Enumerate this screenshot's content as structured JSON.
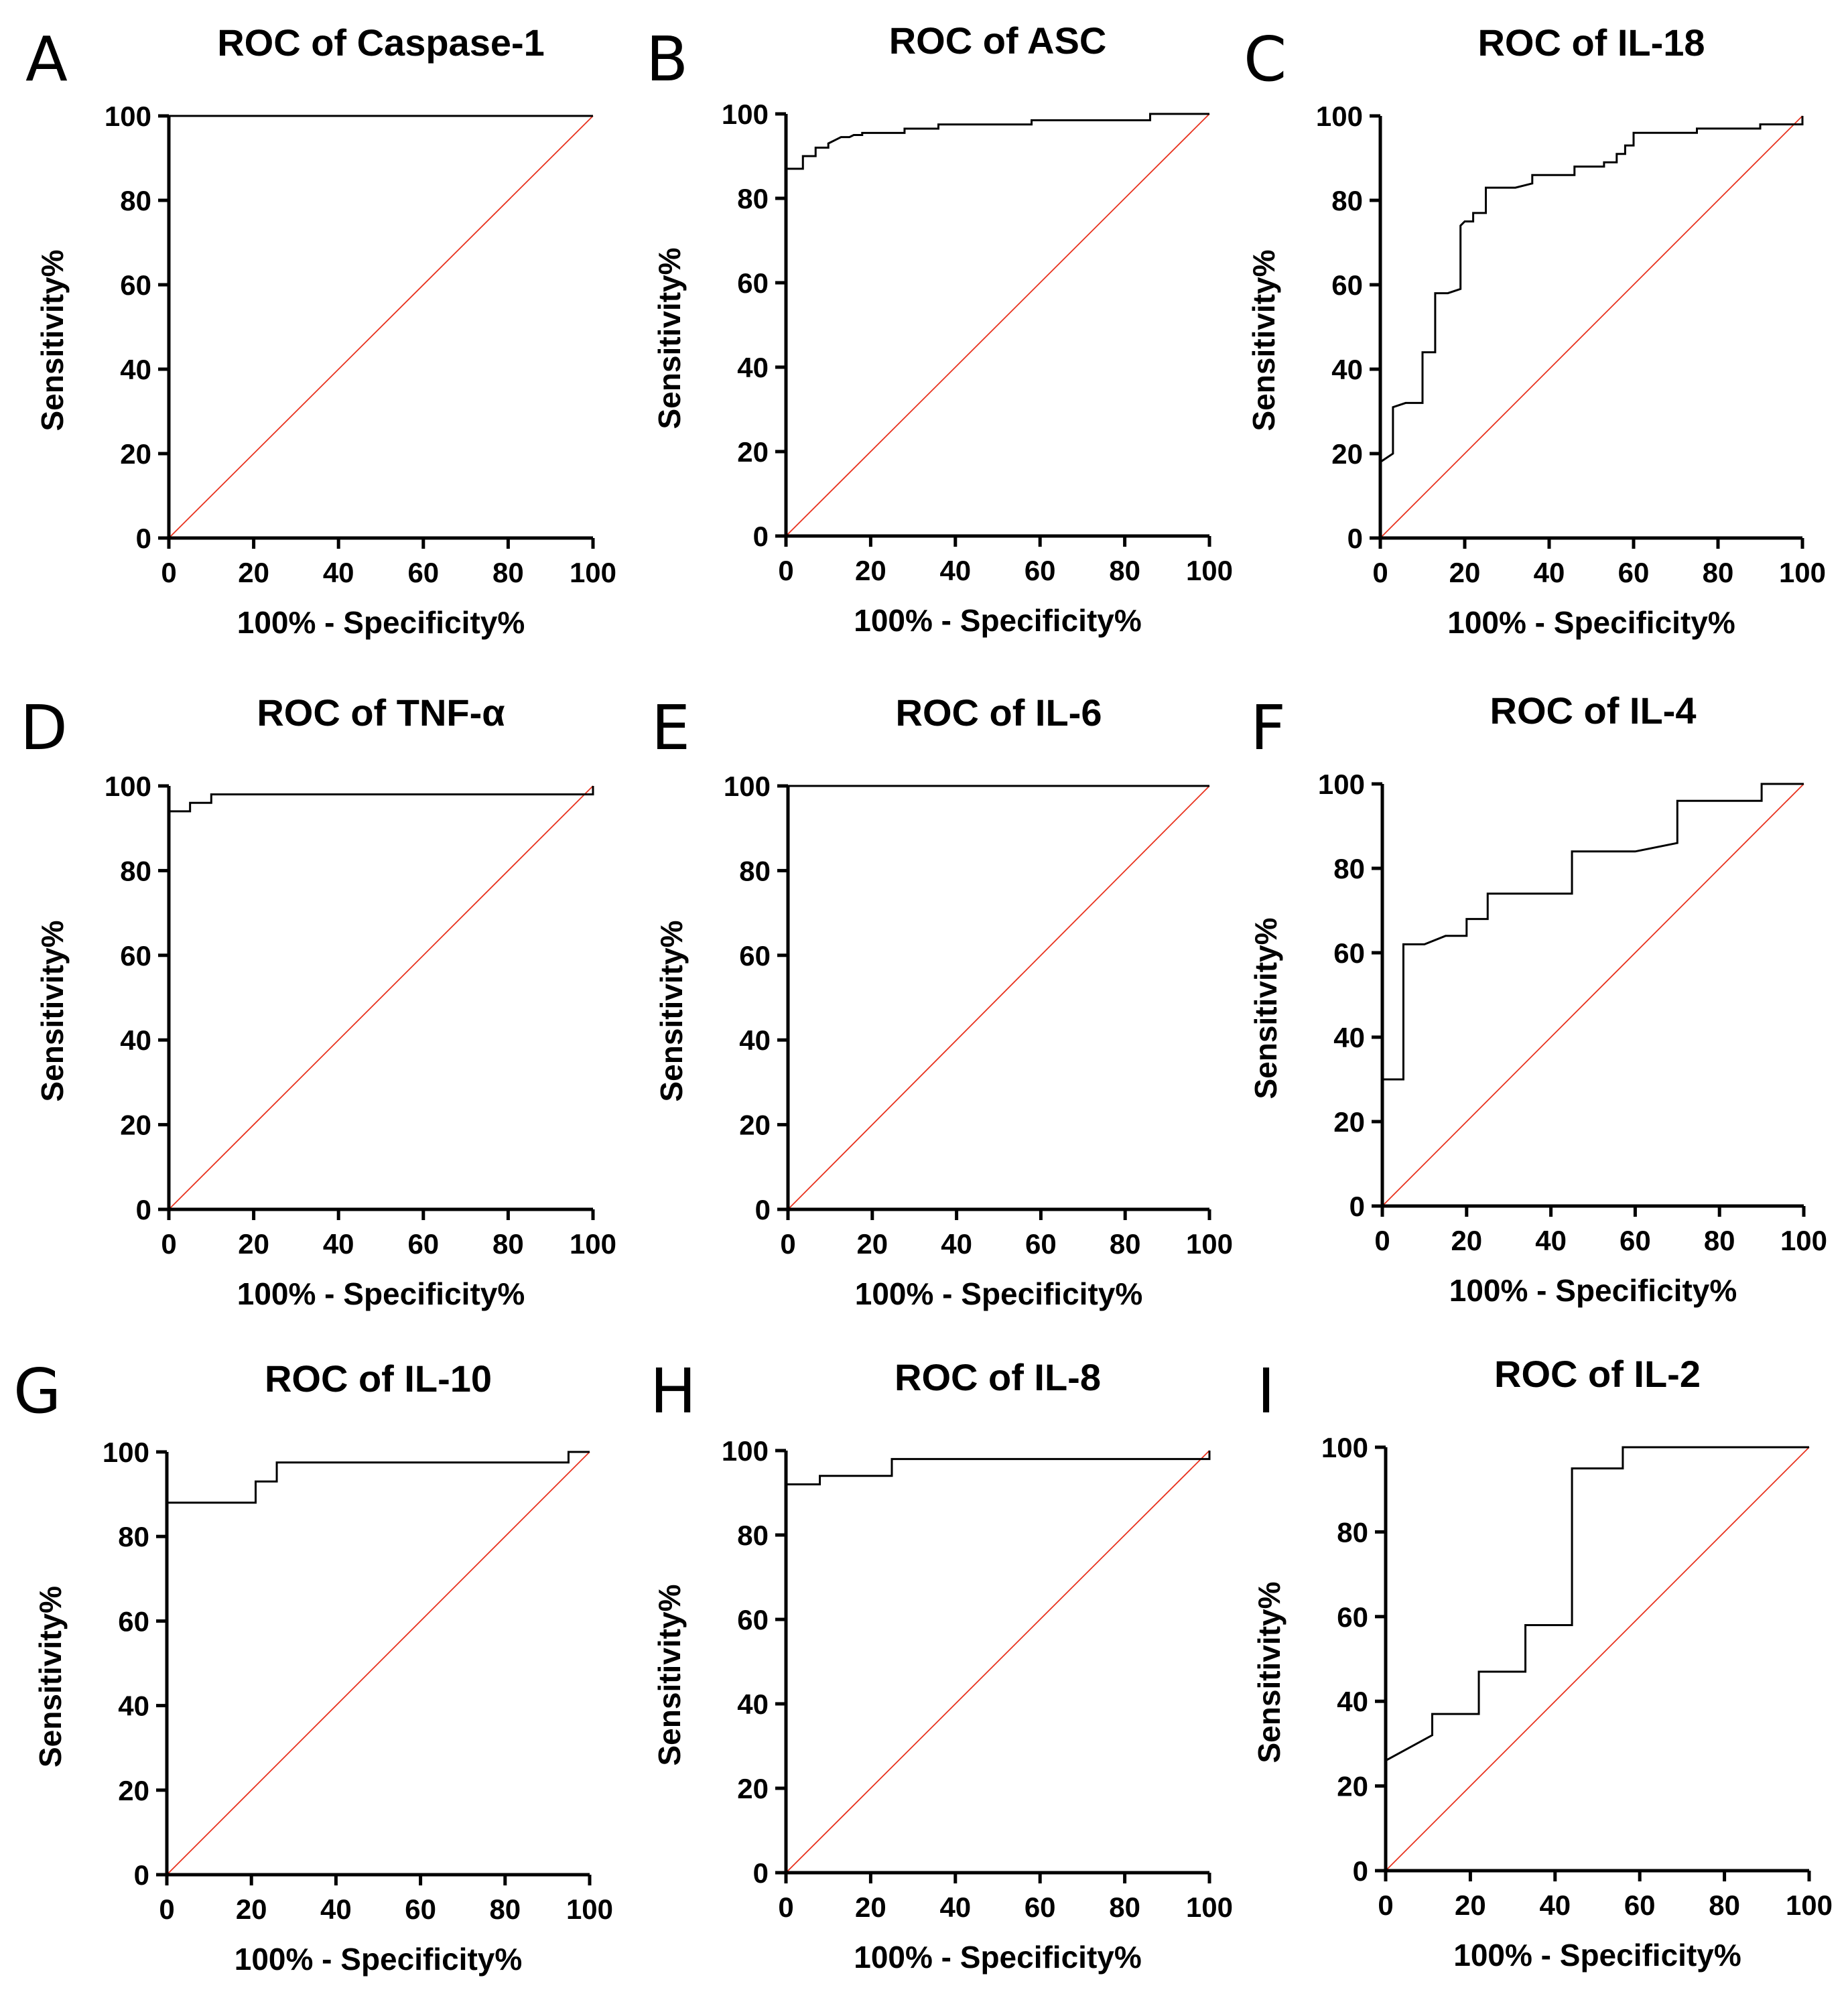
{
  "chart_data": [
    {
      "panel": "A",
      "type": "line",
      "title": "ROC of Caspase-1",
      "xlabel": "100% - Specificity%",
      "ylabel": "Sensitivity%",
      "xlim": [
        0,
        100
      ],
      "ylim": [
        0,
        100
      ],
      "xticks": [
        "0",
        "20",
        "40",
        "60",
        "80",
        "100"
      ],
      "yticks": [
        "0",
        "20",
        "40",
        "60",
        "80",
        "100"
      ],
      "series": [
        {
          "name": "ROC curve",
          "color": "#000000",
          "x": [
            0,
            0,
            100
          ],
          "y": [
            0,
            100,
            100
          ]
        },
        {
          "name": "Reference line",
          "color": "#e8321e",
          "x": [
            0,
            100
          ],
          "y": [
            0,
            100
          ]
        }
      ]
    },
    {
      "panel": "B",
      "type": "line",
      "title": "ROC of ASC",
      "xlabel": "100% - Specificity%",
      "ylabel": "Sensitivity%",
      "xlim": [
        0,
        100
      ],
      "ylim": [
        0,
        100
      ],
      "xticks": [
        "0",
        "20",
        "40",
        "60",
        "80",
        "100"
      ],
      "yticks": [
        "0",
        "20",
        "40",
        "60",
        "80",
        "100"
      ],
      "series": [
        {
          "name": "ROC curve",
          "color": "#000000",
          "x": [
            0,
            0,
            4,
            4,
            7,
            7,
            10,
            10,
            12,
            13,
            15,
            16,
            18,
            18,
            28,
            28,
            36,
            36,
            58,
            58,
            86,
            86,
            100
          ],
          "y": [
            0,
            87,
            87,
            90,
            90,
            92,
            92,
            93,
            94,
            94.5,
            94.5,
            95,
            95,
            95.5,
            95.5,
            96.5,
            96.5,
            97.5,
            97.5,
            98.5,
            98.5,
            100,
            100
          ]
        },
        {
          "name": "Reference line",
          "color": "#e8321e",
          "x": [
            0,
            100
          ],
          "y": [
            0,
            100
          ]
        }
      ]
    },
    {
      "panel": "C",
      "type": "line",
      "title": "ROC of IL-18",
      "xlabel": "100% - Specificity%",
      "ylabel": "Sensitivity%",
      "xlim": [
        0,
        100
      ],
      "ylim": [
        0,
        100
      ],
      "xticks": [
        "0",
        "20",
        "40",
        "60",
        "80",
        "100"
      ],
      "yticks": [
        "0",
        "20",
        "40",
        "60",
        "80",
        "100"
      ],
      "series": [
        {
          "name": "ROC curve",
          "color": "#000000",
          "x": [
            0,
            0,
            3,
            3,
            6,
            10,
            10,
            13,
            13,
            16,
            19,
            19,
            20,
            22,
            22,
            25,
            25,
            32,
            36,
            36,
            46,
            46,
            53,
            53,
            56,
            56,
            58,
            58,
            60,
            60,
            75,
            75,
            90,
            90,
            100,
            100
          ],
          "y": [
            0,
            18,
            20,
            31,
            32,
            32,
            44,
            44,
            58,
            58,
            59,
            74,
            75,
            75,
            77,
            77,
            83,
            83,
            84,
            86,
            86,
            88,
            88,
            89,
            89,
            91,
            91,
            93,
            93,
            96,
            96,
            97,
            97,
            98,
            98,
            100
          ]
        },
        {
          "name": "Reference line",
          "color": "#e8321e",
          "x": [
            0,
            100
          ],
          "y": [
            0,
            100
          ]
        }
      ]
    },
    {
      "panel": "D",
      "type": "line",
      "title": "ROC of TNF-α",
      "xlabel": "100% - Specificity%",
      "ylabel": "Sensitivity%",
      "xlim": [
        0,
        100
      ],
      "ylim": [
        0,
        100
      ],
      "xticks": [
        "0",
        "20",
        "40",
        "60",
        "80",
        "100"
      ],
      "yticks": [
        "0",
        "20",
        "40",
        "60",
        "80",
        "100"
      ],
      "series": [
        {
          "name": "ROC curve",
          "color": "#000000",
          "x": [
            0,
            0,
            5,
            5,
            10,
            10,
            100,
            100
          ],
          "y": [
            0,
            94,
            94,
            96,
            96,
            98,
            98,
            100
          ]
        },
        {
          "name": "Reference line",
          "color": "#e8321e",
          "x": [
            0,
            100
          ],
          "y": [
            0,
            100
          ]
        }
      ]
    },
    {
      "panel": "E",
      "type": "line",
      "title": "ROC of IL-6",
      "xlabel": "100% - Specificity%",
      "ylabel": "Sensitivity%",
      "xlim": [
        0,
        100
      ],
      "ylim": [
        0,
        100
      ],
      "xticks": [
        "0",
        "20",
        "40",
        "60",
        "80",
        "100"
      ],
      "yticks": [
        "0",
        "20",
        "40",
        "60",
        "80",
        "100"
      ],
      "series": [
        {
          "name": "ROC curve",
          "color": "#000000",
          "x": [
            0,
            0,
            100
          ],
          "y": [
            0,
            100,
            100
          ]
        },
        {
          "name": "Reference line",
          "color": "#e8321e",
          "x": [
            0,
            100
          ],
          "y": [
            0,
            100
          ]
        }
      ]
    },
    {
      "panel": "F",
      "type": "line",
      "title": "ROC of IL-4",
      "xlabel": "100% - Specificity%",
      "ylabel": "Sensitivity%",
      "xlim": [
        0,
        100
      ],
      "ylim": [
        0,
        100
      ],
      "xticks": [
        "0",
        "20",
        "40",
        "60",
        "80",
        "100"
      ],
      "yticks": [
        "0",
        "20",
        "40",
        "60",
        "80",
        "100"
      ],
      "series": [
        {
          "name": "ROC curve",
          "color": "#000000",
          "x": [
            0,
            0,
            5,
            5,
            10,
            15,
            20,
            20,
            25,
            25,
            45,
            45,
            60,
            70,
            70,
            90,
            90,
            100
          ],
          "y": [
            0,
            30,
            30,
            62,
            62,
            64,
            64,
            68,
            68,
            74,
            74,
            84,
            84,
            86,
            96,
            96,
            100,
            100
          ]
        },
        {
          "name": "Reference line",
          "color": "#e8321e",
          "x": [
            0,
            100
          ],
          "y": [
            0,
            100
          ]
        }
      ]
    },
    {
      "panel": "G",
      "type": "line",
      "title": "ROC of IL-10",
      "xlabel": "100% - Specificity%",
      "ylabel": "Sensitivity%",
      "xlim": [
        0,
        100
      ],
      "ylim": [
        0,
        100
      ],
      "xticks": [
        "0",
        "20",
        "40",
        "60",
        "80",
        "100"
      ],
      "yticks": [
        "0",
        "20",
        "40",
        "60",
        "80",
        "100"
      ],
      "series": [
        {
          "name": "ROC curve",
          "color": "#000000",
          "x": [
            0,
            0,
            21,
            21,
            26,
            26,
            95,
            95,
            100
          ],
          "y": [
            0,
            88,
            88,
            93,
            93,
            97.5,
            97.5,
            100,
            100
          ]
        },
        {
          "name": "Reference line",
          "color": "#e8321e",
          "x": [
            0,
            100
          ],
          "y": [
            0,
            100
          ]
        }
      ]
    },
    {
      "panel": "H",
      "type": "line",
      "title": "ROC of IL-8",
      "xlabel": "100% - Specificity%",
      "ylabel": "Sensitivity%",
      "xlim": [
        0,
        100
      ],
      "ylim": [
        0,
        100
      ],
      "xticks": [
        "0",
        "20",
        "40",
        "60",
        "80",
        "100"
      ],
      "yticks": [
        "0",
        "20",
        "40",
        "60",
        "80",
        "100"
      ],
      "series": [
        {
          "name": "ROC curve",
          "color": "#000000",
          "x": [
            0,
            0,
            8,
            8,
            25,
            25,
            100,
            100
          ],
          "y": [
            0,
            92,
            92,
            94,
            94,
            98,
            98,
            100
          ]
        },
        {
          "name": "Reference line",
          "color": "#e8321e",
          "x": [
            0,
            100
          ],
          "y": [
            0,
            100
          ]
        }
      ]
    },
    {
      "panel": "I",
      "type": "line",
      "title": "ROC of IL-2",
      "xlabel": "100% - Specificity%",
      "ylabel": "Sensitivity%",
      "xlim": [
        0,
        100
      ],
      "ylim": [
        0,
        100
      ],
      "xticks": [
        "0",
        "20",
        "40",
        "60",
        "80",
        "100"
      ],
      "yticks": [
        "0",
        "20",
        "40",
        "60",
        "80",
        "100"
      ],
      "series": [
        {
          "name": "ROC curve",
          "color": "#000000",
          "x": [
            0,
            0,
            11,
            11,
            22,
            22,
            33,
            33,
            44,
            44,
            56,
            56,
            100
          ],
          "y": [
            0,
            26,
            32,
            37,
            37,
            47,
            47,
            58,
            58,
            95,
            95,
            100,
            100
          ]
        },
        {
          "name": "Reference line",
          "color": "#e8321e",
          "x": [
            0,
            100
          ],
          "y": [
            0,
            100
          ]
        }
      ]
    }
  ]
}
